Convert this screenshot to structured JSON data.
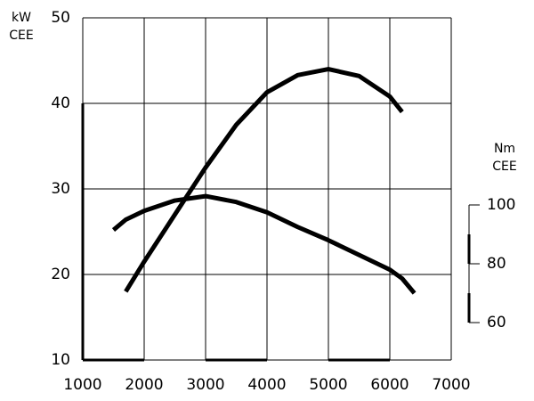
{
  "chart_data": {
    "type": "line",
    "ylabel": [
      "kW",
      "CEE"
    ],
    "y2label": [
      "Nm",
      "CEE"
    ],
    "x": [
      1500,
      1700,
      2000,
      2500,
      3000,
      3500,
      4000,
      4500,
      5000,
      5500,
      6000,
      6200,
      6400
    ],
    "series": [
      {
        "name": "kW CEE",
        "color": "#000000",
        "values": [
          null,
          18,
          21.5,
          27,
          32.5,
          37.5,
          41.3,
          43.3,
          44,
          43.2,
          40.8,
          39,
          null
        ]
      },
      {
        "name": "Nm CEE",
        "color": "#000000",
        "axis": "y2",
        "values": [
          91.5,
          95,
          98,
          101.5,
          103,
          101,
          97.5,
          92.5,
          88,
          83,
          78,
          75,
          70
        ]
      }
    ],
    "xlim": [
      1000,
      7000
    ],
    "xticks": [
      1000,
      2000,
      3000,
      4000,
      5000,
      6000,
      7000
    ],
    "ylim": [
      10,
      50
    ],
    "yticks": [
      10,
      20,
      30,
      40,
      50
    ],
    "y2lim": [
      60,
      100
    ],
    "y2ticks": [
      60,
      80,
      100
    ],
    "grid": true
  }
}
